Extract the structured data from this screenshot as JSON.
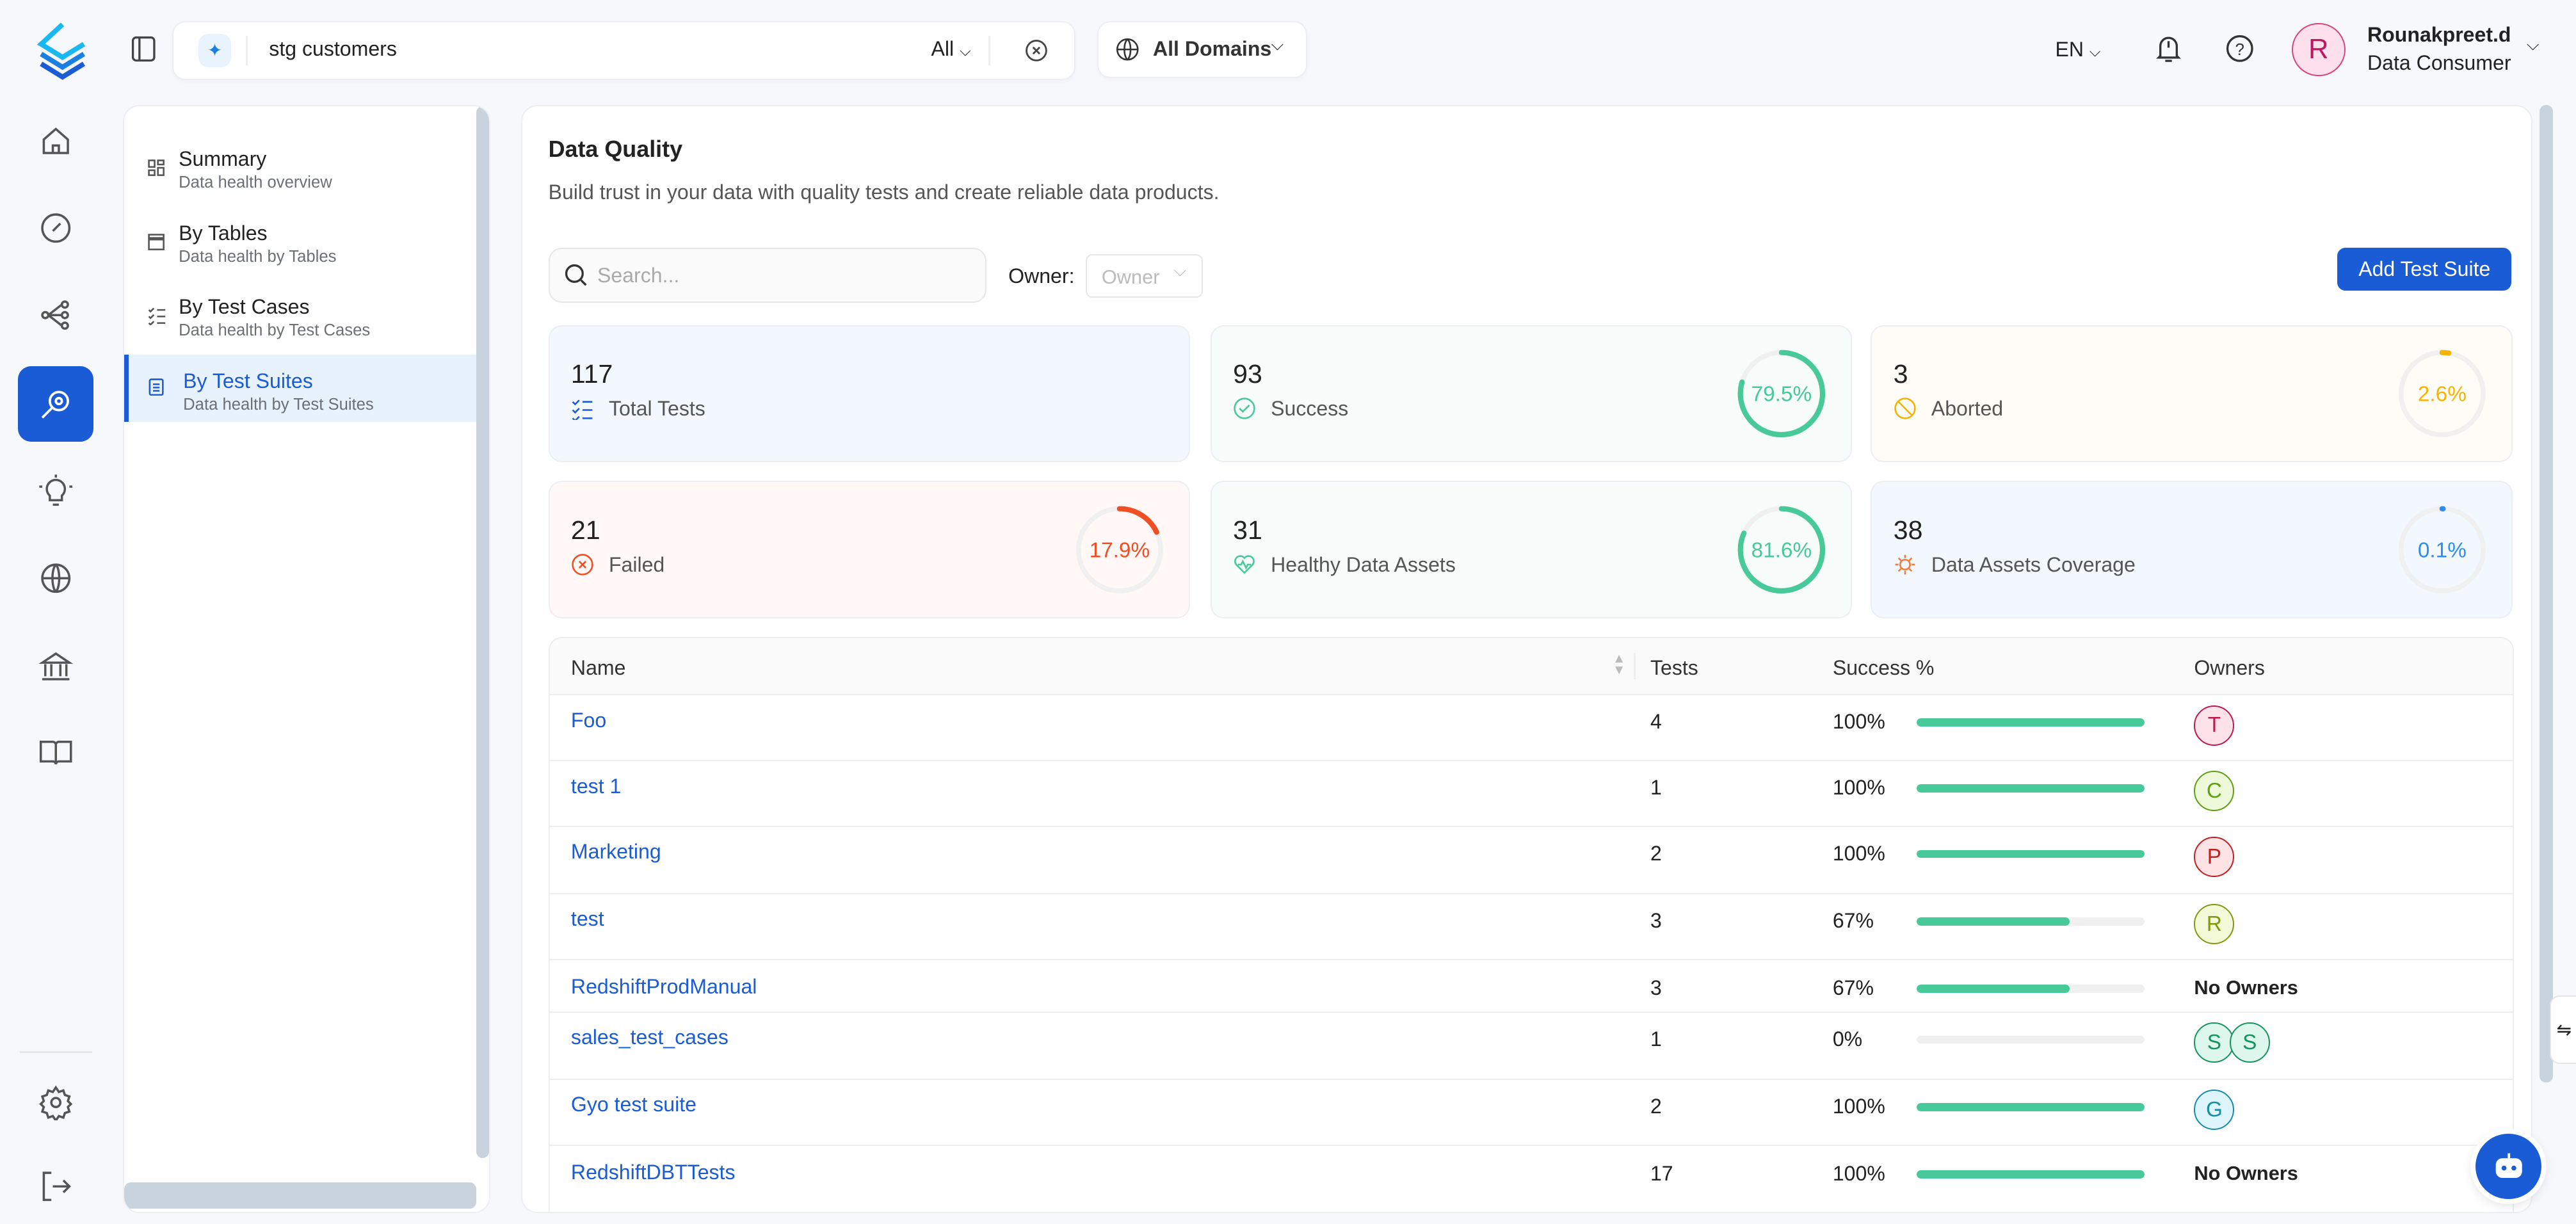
{
  "header": {
    "search_value": "stg customers",
    "search_scope": "All",
    "domain": "All Domains",
    "language": "EN",
    "user_name": "Rounakpreet.d",
    "user_role": "Data Consumer",
    "user_initial": "R"
  },
  "rail": {
    "items": [
      "home",
      "explore",
      "lineage",
      "data-quality",
      "insights",
      "domains",
      "governance",
      "glossary",
      "settings",
      "logout"
    ],
    "active": "data-quality"
  },
  "sidebar": {
    "items": [
      {
        "title": "Summary",
        "subtitle": "Data health overview"
      },
      {
        "title": "By Tables",
        "subtitle": "Data health by Tables"
      },
      {
        "title": "By Test Cases",
        "subtitle": "Data health by Test Cases"
      },
      {
        "title": "By Test Suites",
        "subtitle": "Data health by Test Suites"
      }
    ],
    "active_index": 3
  },
  "main": {
    "title": "Data Quality",
    "subtitle": "Build trust in your data with quality tests and create reliable data products.",
    "search_placeholder": "Search...",
    "owner_label": "Owner",
    "owner_colon": ":",
    "owner_placeholder": "Owner",
    "add_button": "Add Test Suite"
  },
  "stats": [
    {
      "value": "117",
      "label": "Total Tests",
      "color": "#1a5bd6"
    },
    {
      "value": "93",
      "label": "Success",
      "percent": "79.5%",
      "fraction": 0.795,
      "color": "#48c99a"
    },
    {
      "value": "3",
      "label": "Aborted",
      "percent": "2.6%",
      "fraction": 0.026,
      "color": "#f5b400"
    },
    {
      "value": "21",
      "label": "Failed",
      "percent": "17.9%",
      "fraction": 0.179,
      "color": "#f04e23"
    },
    {
      "value": "31",
      "label": "Healthy Data Assets",
      "percent": "81.6%",
      "fraction": 0.816,
      "color": "#48c99a"
    },
    {
      "value": "38",
      "label": "Data Assets Coverage",
      "percent": "0.1%",
      "fraction": 0.001,
      "color": "#2d8df0"
    }
  ],
  "table": {
    "headers": {
      "name": "Name",
      "tests": "Tests",
      "success": "Success %",
      "owners": "Owners"
    },
    "rows": [
      {
        "name": "Foo",
        "tests": "4",
        "success": "100%",
        "fraction": 1,
        "owners": [
          {
            "initial": "T",
            "bg": "#fde2ea",
            "fg": "#c0184f"
          }
        ]
      },
      {
        "name": "test 1",
        "tests": "1",
        "success": "100%",
        "fraction": 1,
        "owners": [
          {
            "initial": "C",
            "bg": "#eef9d9",
            "fg": "#5ea012"
          }
        ]
      },
      {
        "name": "Marketing",
        "tests": "2",
        "success": "100%",
        "fraction": 1,
        "owners": [
          {
            "initial": "P",
            "bg": "#fde3e3",
            "fg": "#c02020"
          }
        ]
      },
      {
        "name": "test",
        "tests": "3",
        "success": "67%",
        "fraction": 0.67,
        "owners": [
          {
            "initial": "R",
            "bg": "#f3f9d6",
            "fg": "#7f9a10"
          }
        ]
      },
      {
        "name": "RedshiftProdManual",
        "tests": "3",
        "success": "67%",
        "fraction": 0.67,
        "owners_text": "No Owners"
      },
      {
        "name": "sales_test_cases",
        "tests": "1",
        "success": "0%",
        "fraction": 0,
        "owners": [
          {
            "initial": "S",
            "bg": "#def7ec",
            "fg": "#15945e"
          },
          {
            "initial": "S",
            "bg": "#def7ec",
            "fg": "#15945e"
          }
        ]
      },
      {
        "name": "Gyo test suite",
        "tests": "2",
        "success": "100%",
        "fraction": 1,
        "owners": [
          {
            "initial": "G",
            "bg": "#def6fb",
            "fg": "#138ea8"
          }
        ]
      },
      {
        "name": "RedshiftDBTTests",
        "tests": "17",
        "success": "100%",
        "fraction": 1,
        "owners_text": "No Owners"
      }
    ]
  }
}
